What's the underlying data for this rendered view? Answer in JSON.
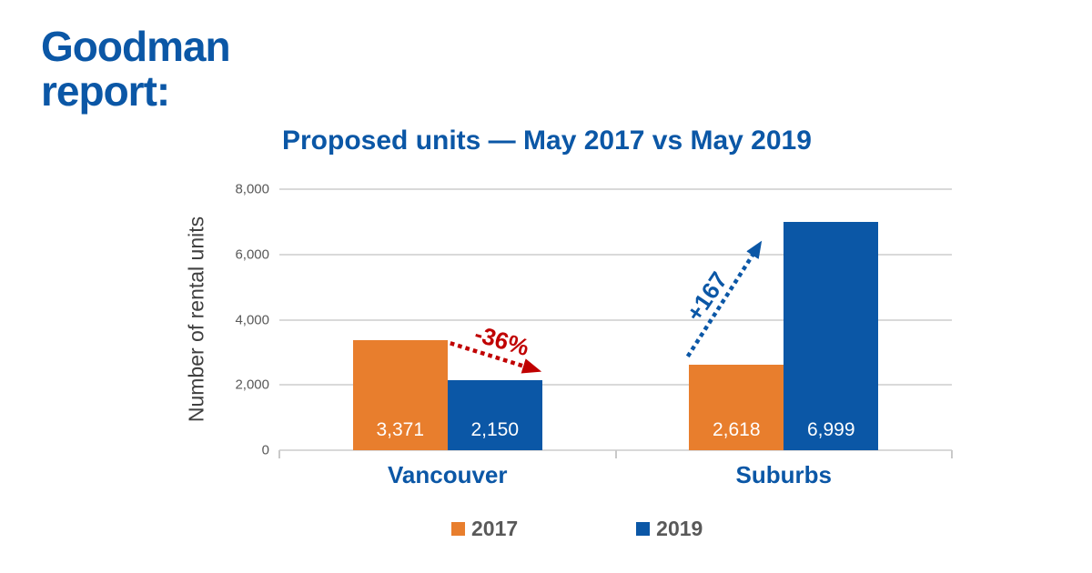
{
  "brand": {
    "line1": "Goodman",
    "line2": "report:",
    "color": "#0B57A6"
  },
  "chart_data": {
    "type": "bar",
    "title": "Proposed units — May 2017 vs May 2019",
    "xlabel": "",
    "ylabel": "Number of rental units",
    "categories": [
      "Vancouver",
      "Suburbs"
    ],
    "series": [
      {
        "name": "2017",
        "color": "#E87E2D",
        "values": [
          3371,
          2618
        ],
        "labels": [
          "3,371",
          "2,618"
        ]
      },
      {
        "name": "2019",
        "color": "#0B57A6",
        "values": [
          2150,
          6999
        ],
        "labels": [
          "2,150",
          "6,999"
        ]
      }
    ],
    "ylim": [
      0,
      8000
    ],
    "y_ticks": [
      "8,000",
      "6,000",
      "4,000",
      "2,000",
      "0"
    ],
    "grid": true,
    "legend_position": "bottom",
    "annotations": [
      {
        "text": "-36%",
        "color": "#C00000",
        "direction": "down-right",
        "between": [
          "Vancouver 2017",
          "Vancouver 2019"
        ]
      },
      {
        "text": "+167",
        "color": "#0B57A6",
        "direction": "up-right",
        "between": [
          "Suburbs 2017",
          "Suburbs 2019"
        ]
      }
    ]
  }
}
